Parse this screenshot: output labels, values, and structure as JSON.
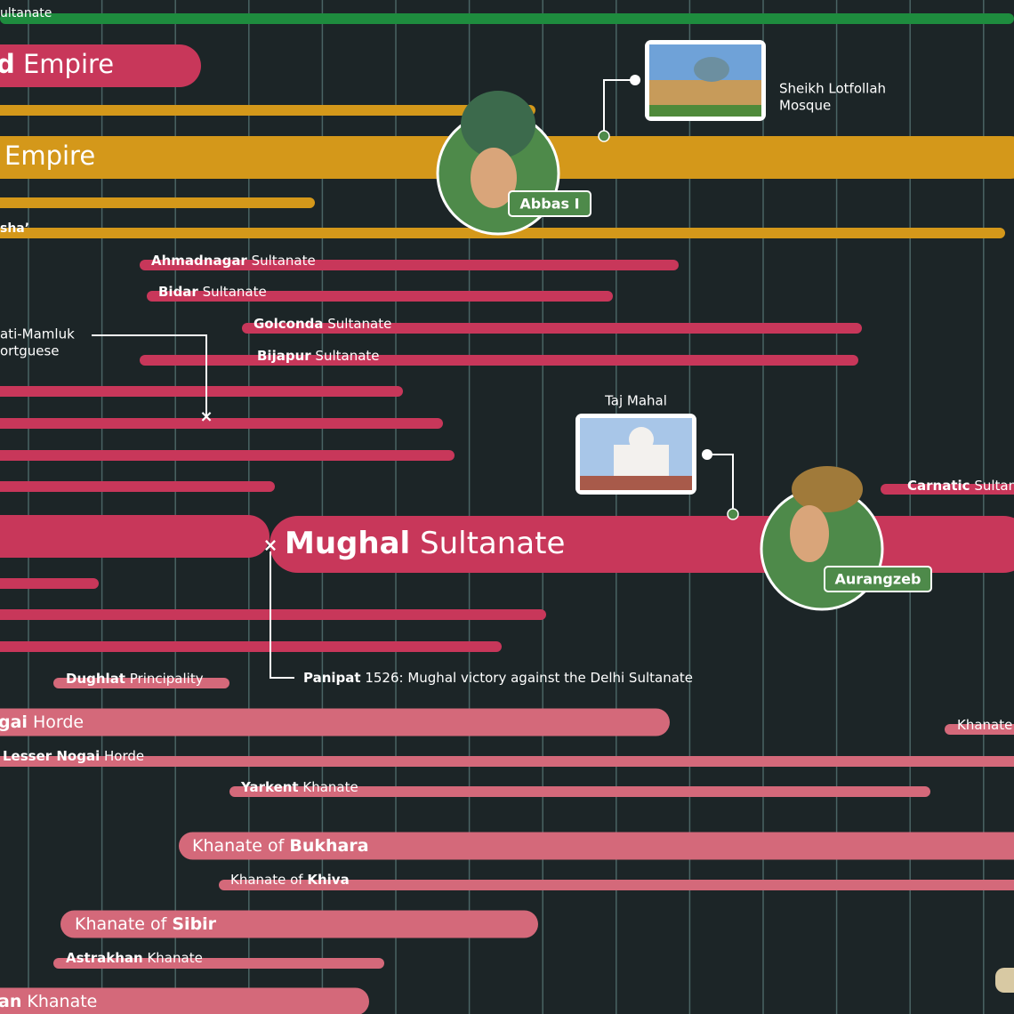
{
  "header_fragment": "ultanate",
  "bars": [
    {
      "label": [
        {
          "text": "d",
          "bold": true
        },
        {
          "text": " Empire",
          "bold": false
        }
      ]
    },
    {
      "label": [
        {
          "text": "Empire",
          "bold": false
        }
      ]
    },
    {
      "label": [
        {
          "text": "sha’",
          "bold": true
        }
      ]
    },
    {
      "label": [
        {
          "text": "Ahmadnagar",
          "bold": true
        },
        {
          "text": " Sultanate",
          "bold": false
        }
      ]
    },
    {
      "label": [
        {
          "text": "Bidar",
          "bold": true
        },
        {
          "text": " Sultanate",
          "bold": false
        }
      ]
    },
    {
      "label": [
        {
          "text": "Golconda",
          "bold": true
        },
        {
          "text": " Sultanate",
          "bold": false
        }
      ]
    },
    {
      "label": [
        {
          "text": "Bijapur",
          "bold": true
        },
        {
          "text": " Sultanate",
          "bold": false
        }
      ]
    },
    {
      "label": [
        {
          "text": "Carnatic",
          "bold": true
        },
        {
          "text": " Sultan",
          "bold": false
        }
      ]
    },
    {
      "label": [
        {
          "text": "Mughal",
          "bold": true
        },
        {
          "text": " Sultanate",
          "bold": false
        }
      ]
    },
    {
      "label": [
        {
          "text": "Dughlat",
          "bold": true
        },
        {
          "text": " Principality",
          "bold": false
        }
      ]
    },
    {
      "label": [
        {
          "text": "gai",
          "bold": true
        },
        {
          "text": " Horde",
          "bold": false
        }
      ]
    },
    {
      "label": [
        {
          "text": "Khanate",
          "bold": false
        }
      ]
    },
    {
      "label": [
        {
          "text": "Lesser Nogai",
          "bold": true
        },
        {
          "text": " Horde",
          "bold": false
        }
      ]
    },
    {
      "label": [
        {
          "text": "Yarkent",
          "bold": true
        },
        {
          "text": " Khanate",
          "bold": false
        }
      ]
    },
    {
      "label": [
        {
          "text": "Khanate of ",
          "bold": false
        },
        {
          "text": "Bukhara",
          "bold": true
        }
      ]
    },
    {
      "label": [
        {
          "text": "Khanate of ",
          "bold": false
        },
        {
          "text": "Khiva",
          "bold": true
        }
      ]
    },
    {
      "label": [
        {
          "text": "Khanate of ",
          "bold": false
        },
        {
          "text": "Sibir",
          "bold": true
        }
      ]
    },
    {
      "label": [
        {
          "text": "Astrakhan",
          "bold": true
        },
        {
          "text": " Khanate",
          "bold": false
        }
      ]
    },
    {
      "label": [
        {
          "text": "an",
          "bold": true
        },
        {
          "text": " Khanate",
          "bold": false
        }
      ]
    }
  ],
  "annotations": {
    "mosque": [
      "Sheikh Lotfollah",
      "Mosque"
    ],
    "taj": "Taj Mahal",
    "mamluk": [
      "ati-Mamluk",
      "ortguese"
    ],
    "panipat": [
      {
        "text": "Panipat",
        "bold": true
      },
      {
        "text": " 1526: Mughal victory against the Delhi Sultanate",
        "bold": false
      }
    ]
  },
  "portraits": [
    {
      "name": "Abbas I"
    },
    {
      "name": "Aurangzeb"
    }
  ]
}
